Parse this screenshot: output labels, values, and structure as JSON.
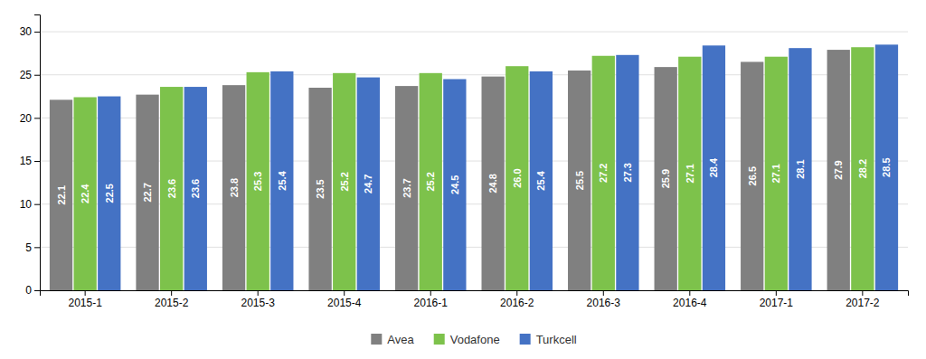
{
  "chart_data": {
    "type": "bar",
    "categories": [
      "2015-1",
      "2015-2",
      "2015-3",
      "2015-4",
      "2016-1",
      "2016-2",
      "2016-3",
      "2016-4",
      "2017-1",
      "2017-2"
    ],
    "series": [
      {
        "name": "Avea",
        "color": "#808080",
        "values": [
          22.1,
          22.7,
          23.8,
          23.5,
          23.7,
          24.8,
          25.5,
          25.9,
          26.5,
          27.9
        ],
        "value_labels": [
          "22.1",
          "22.7",
          "23.8",
          "23.5",
          "23.7",
          "24.8",
          "25.5",
          "25.9",
          "26.5",
          "27.9"
        ]
      },
      {
        "name": "Vodafone",
        "color": "#7DC24B",
        "values": [
          22.4,
          23.6,
          25.3,
          25.2,
          25.2,
          26.0,
          27.2,
          27.1,
          27.1,
          28.2
        ],
        "value_labels": [
          "22.4",
          "23.6",
          "25.3",
          "25.2",
          "25.2",
          "26.0",
          "27.2",
          "27.1",
          "27.1",
          "28.2"
        ]
      },
      {
        "name": "Turkcell",
        "color": "#4472C4",
        "values": [
          22.5,
          23.6,
          25.4,
          24.7,
          24.5,
          25.4,
          27.3,
          28.4,
          28.1,
          28.5
        ],
        "value_labels": [
          "22.5",
          "23.6",
          "25.4",
          "24.7",
          "24.5",
          "25.4",
          "27.3",
          "28.4",
          "28.1",
          "28.5"
        ]
      }
    ],
    "ylim": [
      0,
      32
    ],
    "yticks": [
      0,
      5,
      10,
      15,
      20,
      25,
      30
    ],
    "grid": true,
    "data_labels": true,
    "legend": "bottom"
  }
}
